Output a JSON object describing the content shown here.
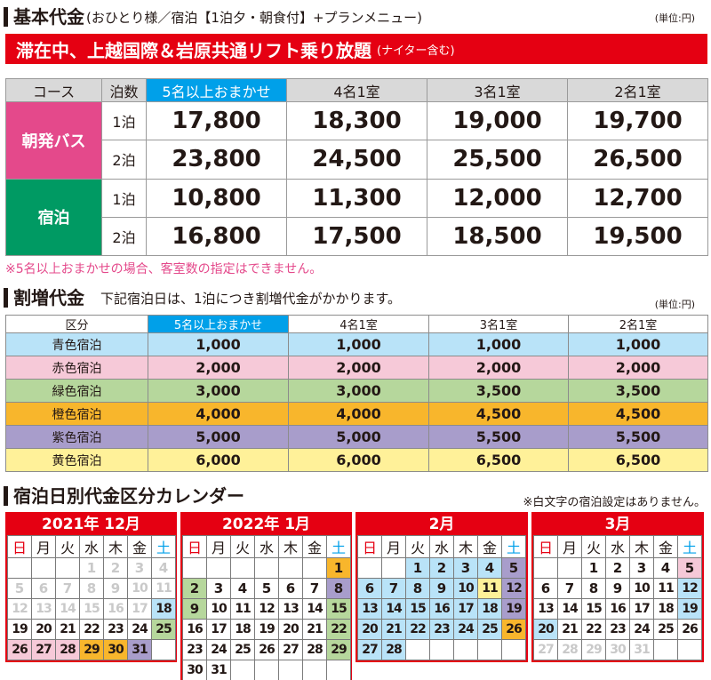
{
  "section1": {
    "title": "基本代金",
    "subtitle": "(おひとり様／宿泊【1泊夕・朝食付】+プランメニュー)",
    "unit": "(単位:円)",
    "banner_main": "滞在中、上越国際＆岩原共通リフト乗り放題",
    "banner_note": "(ナイター含む)",
    "headers": [
      "コース",
      "泊数",
      "5名以上おまかせ",
      "4名1室",
      "3名1室",
      "2名1室"
    ],
    "courses": [
      {
        "name": "朝発バス",
        "rows": [
          {
            "nights": "1泊",
            "prices": [
              "17,800",
              "18,300",
              "19,000",
              "19,700"
            ]
          },
          {
            "nights": "2泊",
            "prices": [
              "23,800",
              "24,500",
              "25,500",
              "26,500"
            ]
          }
        ]
      },
      {
        "name": "宿泊",
        "rows": [
          {
            "nights": "1泊",
            "prices": [
              "10,800",
              "11,300",
              "12,000",
              "12,700"
            ]
          },
          {
            "nights": "2泊",
            "prices": [
              "16,800",
              "17,500",
              "18,500",
              "19,500"
            ]
          }
        ]
      }
    ],
    "note": "※5名以上おまかせの場合、客室数の指定はできません。"
  },
  "section2": {
    "title": "割増代金",
    "subtitle": "下記宿泊日は、1泊につき割増代金がかかります。",
    "unit": "(単位:円)",
    "headers": [
      "区分",
      "5名以上おまかせ",
      "4名1室",
      "3名1室",
      "2名1室"
    ],
    "rows": [
      {
        "category": "青色宿泊",
        "color": "#b9e3f8",
        "values": [
          "1,000",
          "1,000",
          "1,000",
          "1,000"
        ]
      },
      {
        "category": "赤色宿泊",
        "color": "#f6c9d8",
        "values": [
          "2,000",
          "2,000",
          "2,000",
          "2,000"
        ]
      },
      {
        "category": "緑色宿泊",
        "color": "#b6d79c",
        "values": [
          "3,000",
          "3,000",
          "3,500",
          "3,500"
        ]
      },
      {
        "category": "橙色宿泊",
        "color": "#f8b62c",
        "values": [
          "4,000",
          "4,000",
          "4,500",
          "4,500"
        ]
      },
      {
        "category": "紫色宿泊",
        "color": "#a89dcb",
        "values": [
          "5,000",
          "5,000",
          "5,500",
          "5,500"
        ]
      },
      {
        "category": "黄色宿泊",
        "color": "#fff199",
        "values": [
          "6,000",
          "6,000",
          "6,500",
          "6,500"
        ]
      }
    ]
  },
  "section3": {
    "title": "宿泊日別代金区分カレンダー",
    "note": "※白文字の宿泊設定はありません。",
    "weekdays": [
      "日",
      "月",
      "火",
      "水",
      "木",
      "金",
      "土"
    ],
    "months": [
      {
        "title": "2021年 12月",
        "weeks": [
          [
            [
              "",
              ""
            ],
            [
              "",
              ""
            ],
            [
              "",
              ""
            ],
            [
              "1",
              "w"
            ],
            [
              "2",
              "w"
            ],
            [
              "3",
              "w"
            ],
            [
              "4",
              "w"
            ]
          ],
          [
            [
              "5",
              "w"
            ],
            [
              "6",
              "w"
            ],
            [
              "7",
              "w"
            ],
            [
              "8",
              "w"
            ],
            [
              "9",
              "w"
            ],
            [
              "10",
              "w"
            ],
            [
              "11",
              "w"
            ]
          ],
          [
            [
              "12",
              "w"
            ],
            [
              "13",
              "w"
            ],
            [
              "14",
              "w"
            ],
            [
              "15",
              "w"
            ],
            [
              "16",
              "w"
            ],
            [
              "17",
              "w"
            ],
            [
              "18",
              "bl"
            ]
          ],
          [
            [
              "19",
              ""
            ],
            [
              "20",
              ""
            ],
            [
              "21",
              ""
            ],
            [
              "22",
              ""
            ],
            [
              "23",
              ""
            ],
            [
              "24",
              ""
            ],
            [
              "25",
              "gr"
            ]
          ],
          [
            [
              "26",
              "pk"
            ],
            [
              "27",
              "pk"
            ],
            [
              "28",
              "pk"
            ],
            [
              "29",
              "or"
            ],
            [
              "30",
              "or"
            ],
            [
              "31",
              "pu"
            ],
            [
              "",
              ""
            ]
          ]
        ]
      },
      {
        "title": "2022年 1月",
        "weeks": [
          [
            [
              "",
              ""
            ],
            [
              "",
              ""
            ],
            [
              "",
              ""
            ],
            [
              "",
              ""
            ],
            [
              "",
              ""
            ],
            [
              "",
              ""
            ],
            [
              "1",
              "or"
            ]
          ],
          [
            [
              "2",
              "gr"
            ],
            [
              "3",
              ""
            ],
            [
              "4",
              ""
            ],
            [
              "5",
              ""
            ],
            [
              "6",
              ""
            ],
            [
              "7",
              ""
            ],
            [
              "8",
              "pu"
            ]
          ],
          [
            [
              "9",
              "gr"
            ],
            [
              "10",
              ""
            ],
            [
              "11",
              ""
            ],
            [
              "12",
              ""
            ],
            [
              "13",
              ""
            ],
            [
              "14",
              ""
            ],
            [
              "15",
              "gr"
            ]
          ],
          [
            [
              "16",
              ""
            ],
            [
              "17",
              ""
            ],
            [
              "18",
              ""
            ],
            [
              "19",
              ""
            ],
            [
              "20",
              ""
            ],
            [
              "21",
              ""
            ],
            [
              "22",
              "gr"
            ]
          ],
          [
            [
              "23",
              ""
            ],
            [
              "24",
              ""
            ],
            [
              "25",
              ""
            ],
            [
              "26",
              ""
            ],
            [
              "27",
              ""
            ],
            [
              "28",
              ""
            ],
            [
              "29",
              "gr"
            ]
          ],
          [
            [
              "30",
              ""
            ],
            [
              "31",
              ""
            ],
            [
              "",
              ""
            ],
            [
              "",
              ""
            ],
            [
              "",
              ""
            ],
            [
              "",
              ""
            ],
            [
              "",
              ""
            ]
          ]
        ]
      },
      {
        "title": "2月",
        "weeks": [
          [
            [
              "",
              ""
            ],
            [
              "",
              ""
            ],
            [
              "1",
              "bl"
            ],
            [
              "2",
              "bl"
            ],
            [
              "3",
              "bl"
            ],
            [
              "4",
              "bl"
            ],
            [
              "5",
              "pu"
            ]
          ],
          [
            [
              "6",
              "bl"
            ],
            [
              "7",
              "bl"
            ],
            [
              "8",
              "bl"
            ],
            [
              "9",
              "bl"
            ],
            [
              "10",
              "bl"
            ],
            [
              "11",
              "ye"
            ],
            [
              "12",
              "pu"
            ]
          ],
          [
            [
              "13",
              "bl"
            ],
            [
              "14",
              "bl"
            ],
            [
              "15",
              "bl"
            ],
            [
              "16",
              "bl"
            ],
            [
              "17",
              "bl"
            ],
            [
              "18",
              "bl"
            ],
            [
              "19",
              "pu"
            ]
          ],
          [
            [
              "20",
              "bl"
            ],
            [
              "21",
              "bl"
            ],
            [
              "22",
              "bl"
            ],
            [
              "23",
              "bl"
            ],
            [
              "24",
              "bl"
            ],
            [
              "25",
              "bl"
            ],
            [
              "26",
              "or"
            ]
          ],
          [
            [
              "27",
              "bl"
            ],
            [
              "28",
              "bl"
            ],
            [
              "",
              ""
            ],
            [
              "",
              ""
            ],
            [
              "",
              ""
            ],
            [
              "",
              ""
            ],
            [
              "",
              ""
            ]
          ]
        ]
      },
      {
        "title": "3月",
        "weeks": [
          [
            [
              "",
              ""
            ],
            [
              "",
              ""
            ],
            [
              "1",
              ""
            ],
            [
              "2",
              ""
            ],
            [
              "3",
              ""
            ],
            [
              "4",
              ""
            ],
            [
              "5",
              "pk"
            ]
          ],
          [
            [
              "6",
              ""
            ],
            [
              "7",
              ""
            ],
            [
              "8",
              ""
            ],
            [
              "9",
              ""
            ],
            [
              "10",
              ""
            ],
            [
              "11",
              ""
            ],
            [
              "12",
              "bl"
            ]
          ],
          [
            [
              "13",
              ""
            ],
            [
              "14",
              ""
            ],
            [
              "15",
              ""
            ],
            [
              "16",
              ""
            ],
            [
              "17",
              ""
            ],
            [
              "18",
              ""
            ],
            [
              "19",
              "bl"
            ]
          ],
          [
            [
              "20",
              "bl"
            ],
            [
              "21",
              ""
            ],
            [
              "22",
              ""
            ],
            [
              "23",
              ""
            ],
            [
              "24",
              ""
            ],
            [
              "25",
              ""
            ],
            [
              "26",
              ""
            ]
          ],
          [
            [
              "27",
              "w"
            ],
            [
              "28",
              "w"
            ],
            [
              "29",
              "w"
            ],
            [
              "30",
              "w"
            ],
            [
              "31",
              "w"
            ],
            [
              "",
              ""
            ],
            [
              "",
              ""
            ]
          ]
        ]
      }
    ]
  }
}
